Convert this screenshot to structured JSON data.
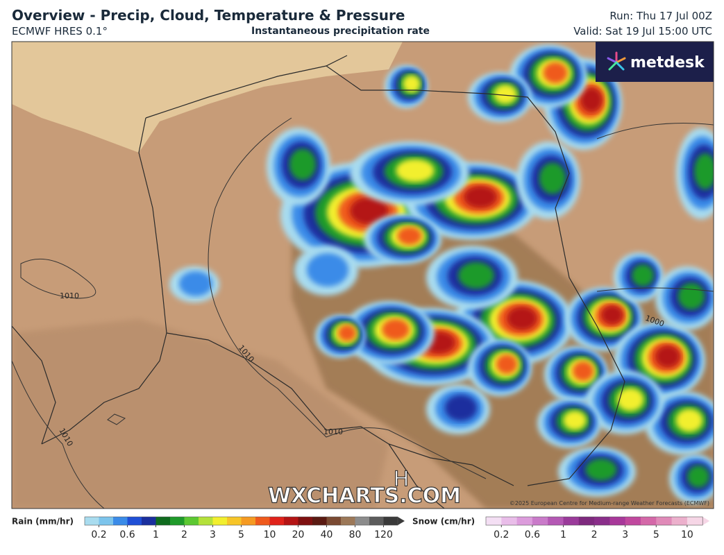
{
  "header": {
    "title": "Overview - Precip, Cloud, Temperature & Pressure",
    "model": "ECMWF HRES 0.1°",
    "subtitle": "Instantaneous precipitation rate",
    "run": "Run: Thu 17 Jul 00Z",
    "valid": "Valid: Sat 19 Jul 15:00 UTC"
  },
  "map": {
    "logo": "metdesk",
    "watermark": "WXCHARTS.COM",
    "copyright": "©2025 European Centre for Medium-range Weather Forecasts (ECMWF)",
    "pressure_center": "H",
    "isobar_labels": [
      "1010",
      "1010",
      "1010",
      "1010",
      "1000"
    ]
  },
  "legend": {
    "rain": {
      "title": "Rain (mm/hr)",
      "labels": [
        0.2,
        0.6,
        1,
        2,
        3,
        5,
        10,
        20,
        40,
        80,
        120
      ],
      "colors": [
        "#a9dcef",
        "#7cc4ec",
        "#3a8be8",
        "#1f4fd6",
        "#1a2f9e",
        "#0f6b1e",
        "#1f9a2a",
        "#5cc832",
        "#b4e13a",
        "#f2ef2e",
        "#f7c528",
        "#f59a22",
        "#ef5a1c",
        "#e0221a",
        "#b41414",
        "#7e1010",
        "#5a1a12",
        "#7a4a32",
        "#9c7858",
        "#8c8c8c",
        "#5c5c5c",
        "#3a3a3a"
      ]
    },
    "snow": {
      "title": "Snow (cm/hr)",
      "labels": [
        0.2,
        0.6,
        1,
        2,
        3,
        5,
        10
      ],
      "colors": [
        "#f4dff4",
        "#e9bde9",
        "#dc9cdc",
        "#c97ac9",
        "#b458b4",
        "#9a3a9a",
        "#7e2a7e",
        "#8a2e8a",
        "#a8389a",
        "#c0489e",
        "#d468a8",
        "#e08ab8",
        "#ecb0cc",
        "#f6d6e6"
      ]
    }
  }
}
